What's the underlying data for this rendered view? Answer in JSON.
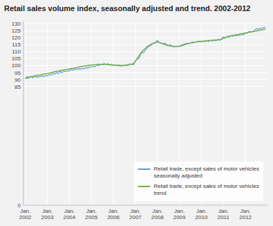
{
  "chart_data": {
    "type": "line",
    "title": "Retail sales volume index, seasonally adjusted and trend. 2002-2012",
    "categories": [
      "Jan.\n2002",
      null,
      null,
      null,
      null,
      null,
      null,
      null,
      null,
      null,
      null,
      null,
      "Jan.\n2003",
      null,
      null,
      null,
      null,
      null,
      null,
      null,
      null,
      null,
      null,
      null,
      "Jan.\n2004",
      null,
      null,
      null,
      null,
      null,
      null,
      null,
      null,
      null,
      null,
      null,
      "Jan.\n2005",
      null,
      null,
      null,
      null,
      null,
      null,
      null,
      null,
      null,
      null,
      null,
      "Jan.\n2006",
      null,
      null,
      null,
      null,
      null,
      null,
      null,
      null,
      null,
      null,
      null,
      "Jan.\n2007",
      null,
      null,
      null,
      null,
      null,
      null,
      null,
      null,
      null,
      null,
      null,
      "Jan.\n2008",
      null,
      null,
      null,
      null,
      null,
      null,
      null,
      null,
      null,
      null,
      null,
      "Jan.\n2009",
      null,
      null,
      null,
      null,
      null,
      null,
      null,
      null,
      null,
      null,
      null,
      "Jan.\n2010",
      null,
      null,
      null,
      null,
      null,
      null,
      null,
      null,
      null,
      null,
      null,
      "Jan.\n2011",
      null,
      null,
      null,
      null,
      null,
      null,
      null,
      null,
      null,
      null,
      null,
      "Jan.\n2012",
      null,
      null,
      null,
      null,
      null,
      null,
      null,
      null,
      null,
      null,
      null
    ],
    "series": [
      {
        "name": "Retail trade, except sales of motor vehicles\nseasonally adjusted",
        "color": "#5b9bd5",
        "values": [
          90.5,
          92.2,
          90.8,
          92.5,
          91.0,
          92.8,
          91.5,
          92.0,
          91.8,
          92.5,
          92.0,
          92.8,
          92.5,
          93.5,
          93.0,
          94.2,
          93.8,
          95.0,
          94.2,
          95.8,
          94.8,
          96.2,
          95.5,
          96.0,
          96.2,
          97.0,
          96.5,
          97.5,
          97.0,
          97.8,
          97.2,
          98.0,
          97.5,
          98.5,
          98.0,
          99.0,
          98.8,
          99.5,
          99.0,
          100.5,
          99.8,
          101.0,
          100.5,
          101.5,
          100.8,
          101.2,
          100.5,
          100.8,
          100.2,
          100.5,
          99.8,
          100.5,
          99.5,
          100.2,
          99.8,
          100.5,
          100.0,
          101.2,
          100.8,
          100.5,
          103.5,
          104.5,
          105.0,
          108.5,
          109.0,
          110.2,
          112.0,
          113.5,
          114.0,
          115.2,
          115.8,
          116.5,
          118.0,
          116.5,
          116.0,
          115.5,
          116.0,
          115.0,
          114.5,
          114.8,
          114.0,
          113.2,
          113.5,
          113.8,
          114.0,
          114.5,
          115.0,
          115.5,
          116.0,
          115.5,
          116.2,
          116.8,
          116.5,
          116.8,
          117.2,
          117.5,
          116.8,
          117.5,
          117.0,
          117.8,
          117.2,
          118.0,
          117.5,
          118.2,
          117.8,
          118.5,
          118.0,
          118.8,
          120.5,
          119.5,
          121.0,
          120.0,
          121.5,
          120.8,
          121.8,
          121.2,
          121.8,
          121.5,
          122.5,
          122.0,
          123.5,
          123.0,
          124.5,
          124.0,
          124.5,
          125.2,
          126.5,
          125.8,
          126.8,
          126.5,
          127.0,
          127.5
        ]
      },
      {
        "name": "Retail trade, except sales of motor vehicles\ntrend",
        "color": "#70ad47",
        "values": [
          90.8,
          91.2,
          91.6,
          92.0,
          92.2,
          92.5,
          92.8,
          93.0,
          93.2,
          93.5,
          93.8,
          94.0,
          94.2,
          94.5,
          94.8,
          95.2,
          95.5,
          95.8,
          96.0,
          96.3,
          96.6,
          96.8,
          97.0,
          97.3,
          97.5,
          97.8,
          98.0,
          98.3,
          98.5,
          98.8,
          99.0,
          99.3,
          99.6,
          99.8,
          100.0,
          100.2,
          100.3,
          100.5,
          100.6,
          100.8,
          100.8,
          100.9,
          100.8,
          100.8,
          100.7,
          100.6,
          100.5,
          100.4,
          100.3,
          100.2,
          100.1,
          100.0,
          100.0,
          100.0,
          100.1,
          100.2,
          100.5,
          100.8,
          101.0,
          101.5,
          103.0,
          105.0,
          107.0,
          109.0,
          110.5,
          111.8,
          113.0,
          114.0,
          114.8,
          115.5,
          116.0,
          116.5,
          116.8,
          116.5,
          116.0,
          115.5,
          115.0,
          114.5,
          114.2,
          114.0,
          113.8,
          113.6,
          113.5,
          113.6,
          113.8,
          114.0,
          114.5,
          115.0,
          115.5,
          115.8,
          116.0,
          116.3,
          116.5,
          116.8,
          117.0,
          117.2,
          117.3,
          117.5,
          117.6,
          117.8,
          117.8,
          118.0,
          118.0,
          118.2,
          118.2,
          118.5,
          118.5,
          118.8,
          119.5,
          120.0,
          120.5,
          121.0,
          121.3,
          121.5,
          121.8,
          122.0,
          122.2,
          122.5,
          122.8,
          123.0,
          123.3,
          123.5,
          123.8,
          124.0,
          124.2,
          124.5,
          124.8,
          125.0,
          125.3,
          125.5,
          125.8,
          126.0
        ]
      }
    ],
    "ylim": [
      0,
      132
    ],
    "yticks": [
      0,
      85,
      90,
      95,
      100,
      105,
      110,
      115,
      120,
      125,
      130
    ],
    "grid": true,
    "legend": "lower right"
  }
}
